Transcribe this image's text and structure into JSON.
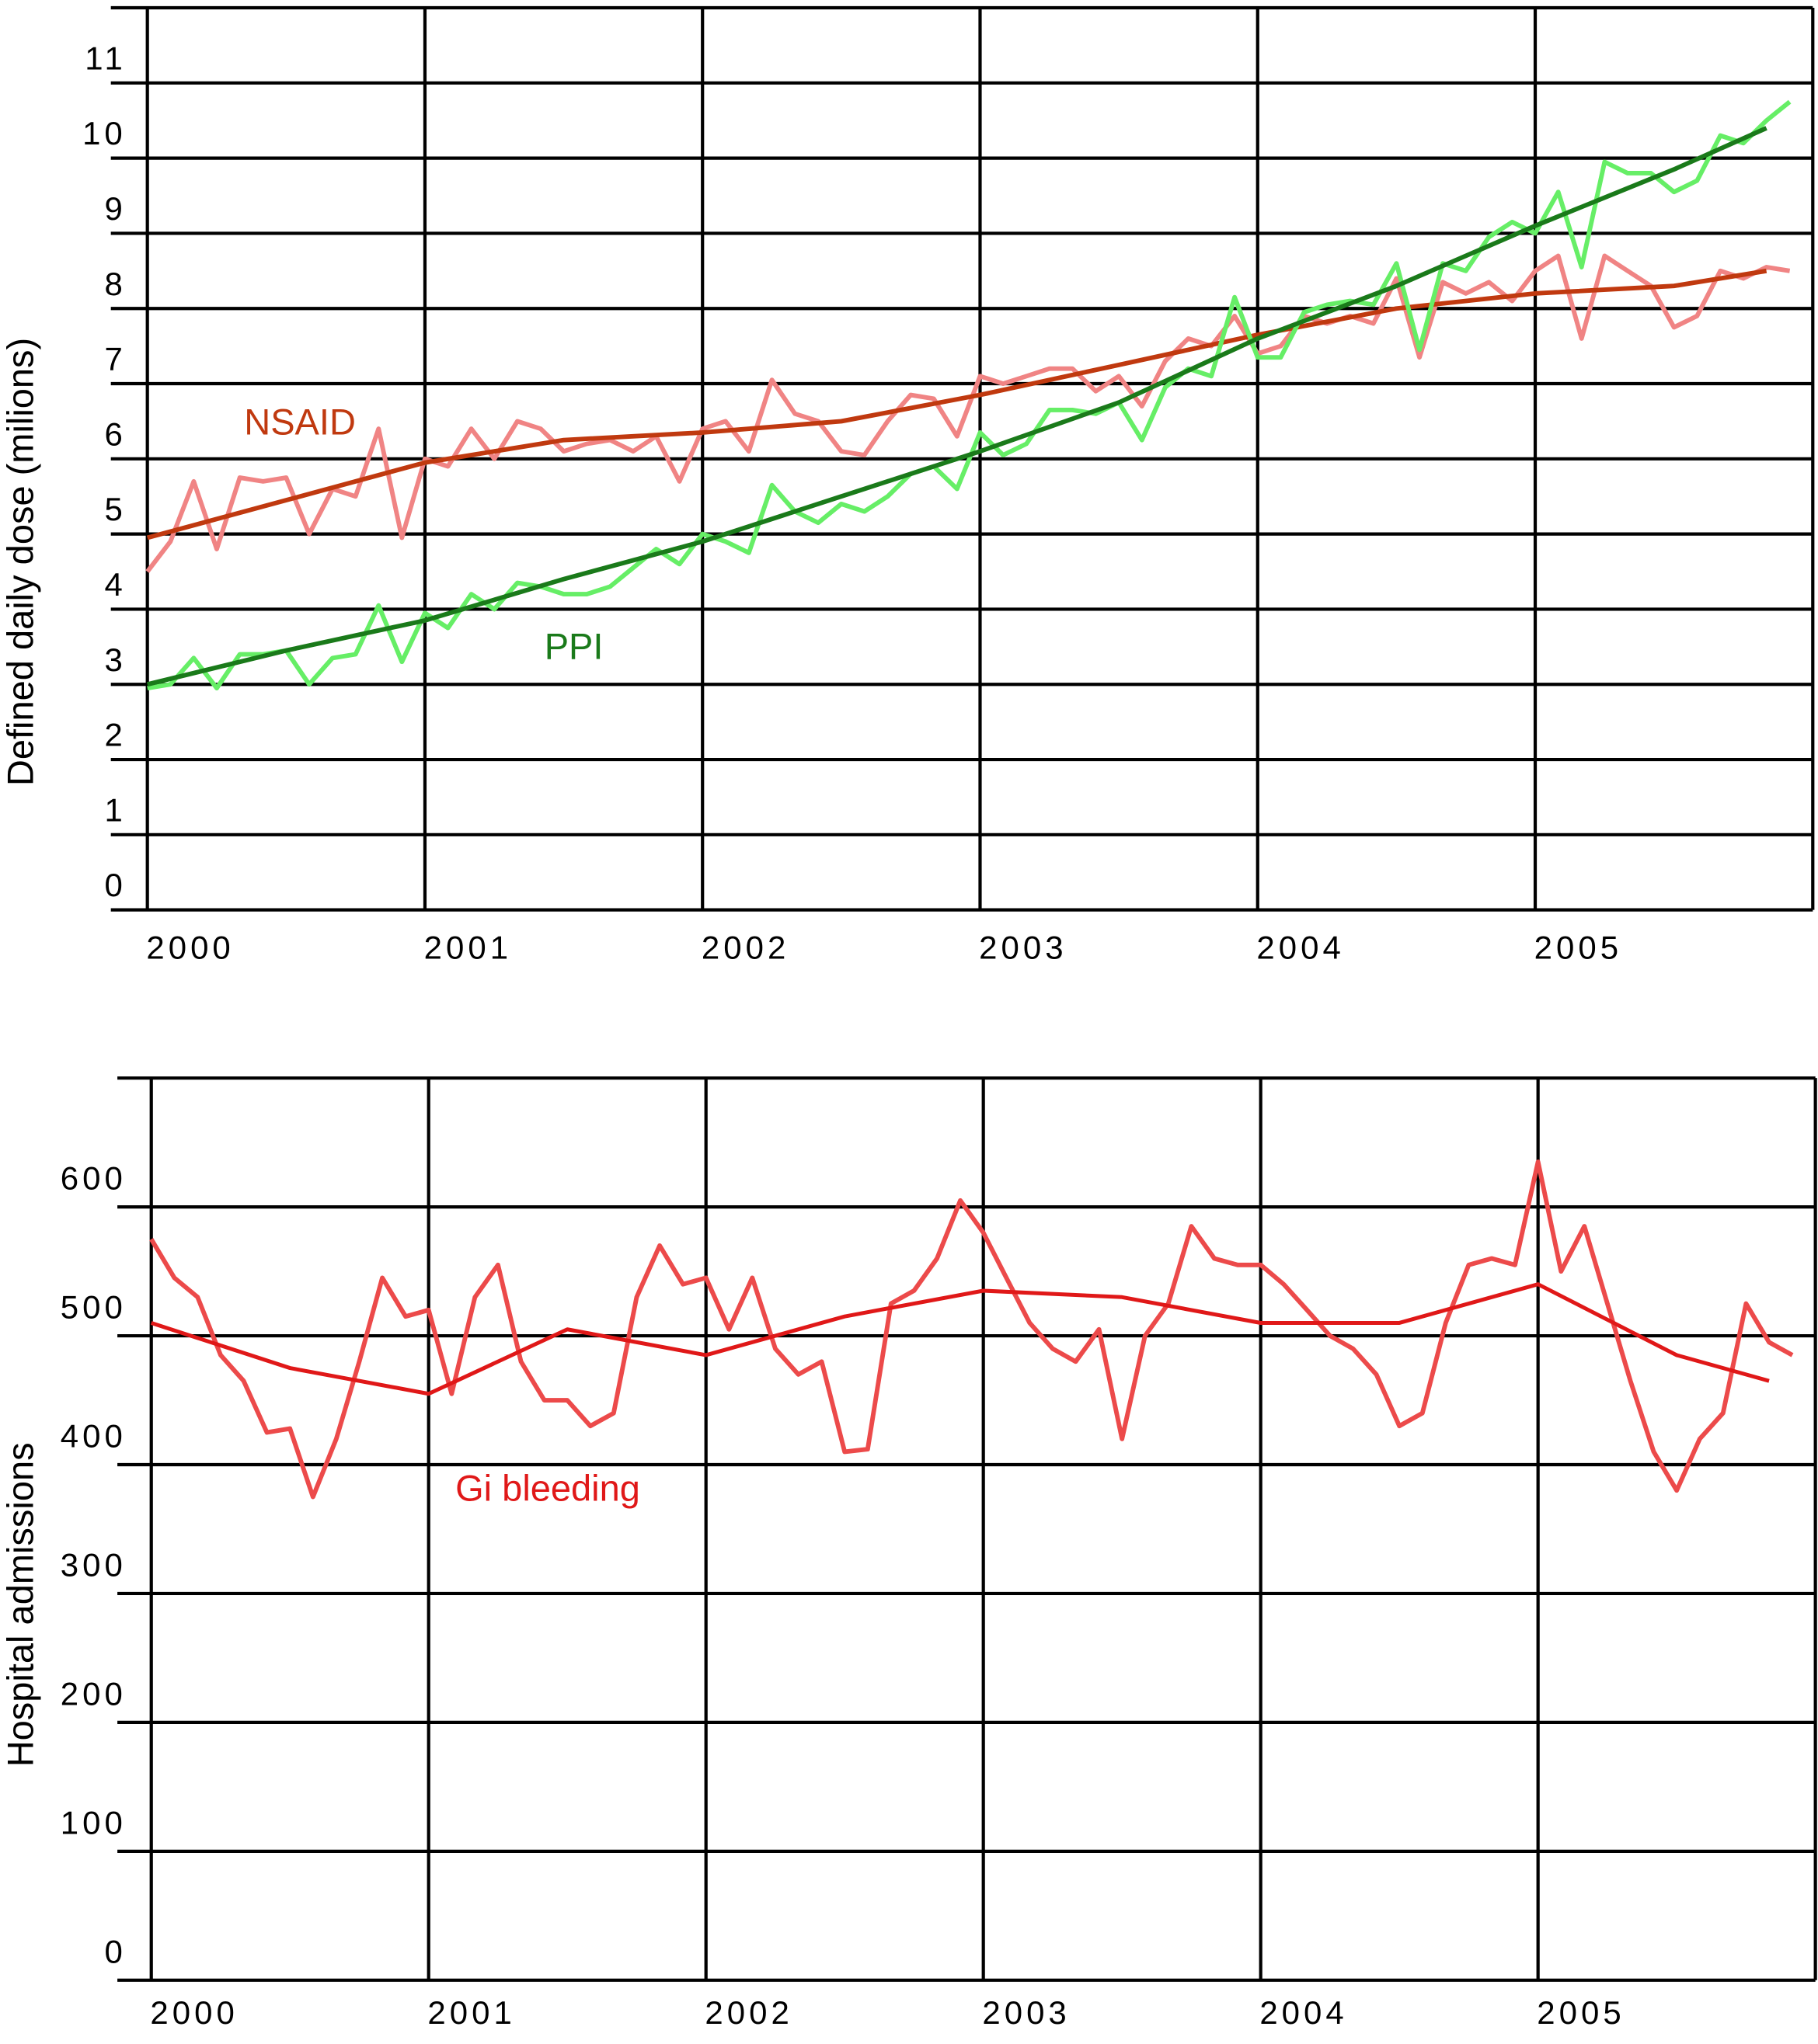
{
  "chart_data": [
    {
      "type": "line",
      "ylabel": "Defined daily dose (milions)",
      "xlim": [
        2000,
        2006
      ],
      "xticks": [
        2000,
        2001,
        2002,
        2003,
        2004,
        2005
      ],
      "ylim": [
        0,
        12
      ],
      "yticks": [
        0,
        1,
        2,
        3,
        4,
        5,
        6,
        7,
        8,
        9,
        10,
        11
      ],
      "grid": true,
      "x": [
        2000,
        2000.083,
        2000.167,
        2000.25,
        2000.333,
        2000.417,
        2000.5,
        2000.583,
        2000.667,
        2000.75,
        2000.833,
        2000.917,
        2001,
        2001.083,
        2001.167,
        2001.25,
        2001.333,
        2001.417,
        2001.5,
        2001.583,
        2001.667,
        2001.75,
        2001.833,
        2001.917,
        2002,
        2002.083,
        2002.167,
        2002.25,
        2002.333,
        2002.417,
        2002.5,
        2002.583,
        2002.667,
        2002.75,
        2002.833,
        2002.917,
        2003,
        2003.083,
        2003.167,
        2003.25,
        2003.333,
        2003.417,
        2003.5,
        2003.583,
        2003.667,
        2003.75,
        2003.833,
        2003.917,
        2004,
        2004.083,
        2004.167,
        2004.25,
        2004.333,
        2004.417,
        2004.5,
        2004.583,
        2004.667,
        2004.75,
        2004.833,
        2004.917,
        2005,
        2005.083,
        2005.167,
        2005.25,
        2005.333,
        2005.417,
        2005.5,
        2005.583,
        2005.667,
        2005.75,
        2005.833,
        2005.917
      ],
      "series": [
        {
          "color": "#f08484",
          "values": [
            4.5,
            4.9,
            5.7,
            4.8,
            5.75,
            5.7,
            5.75,
            5.0,
            5.6,
            5.5,
            6.4,
            4.95,
            6.0,
            5.9,
            6.4,
            6.0,
            6.5,
            6.4,
            6.1,
            6.2,
            6.25,
            6.1,
            6.3,
            5.7,
            6.4,
            6.5,
            6.1,
            7.05,
            6.6,
            6.5,
            6.1,
            6.05,
            6.5,
            6.85,
            6.8,
            6.3,
            7.1,
            7.0,
            7.1,
            7.2,
            7.2,
            6.9,
            7.1,
            6.7,
            7.3,
            7.6,
            7.5,
            7.9,
            7.4,
            7.5,
            7.9,
            7.8,
            7.9,
            7.8,
            8.4,
            7.35,
            8.35,
            8.2,
            8.35,
            8.1,
            8.5,
            8.7,
            7.6,
            8.7,
            8.5,
            8.3,
            7.75,
            7.9,
            8.5,
            8.4,
            8.55,
            8.5
          ]
        },
        {
          "name": "NSAID",
          "color": "#c0390f",
          "x": [
            2000,
            2000.5,
            2001,
            2001.5,
            2002,
            2002.5,
            2003,
            2003.5,
            2004,
            2004.5,
            2005,
            2005.5,
            2005.833
          ],
          "values": [
            4.95,
            5.45,
            5.95,
            6.25,
            6.35,
            6.5,
            6.85,
            7.25,
            7.65,
            8.0,
            8.2,
            8.3,
            8.5
          ]
        },
        {
          "color": "#66ee66",
          "values": [
            2.95,
            3.0,
            3.35,
            2.95,
            3.4,
            3.4,
            3.45,
            3.0,
            3.35,
            3.4,
            4.05,
            3.3,
            3.95,
            3.75,
            4.2,
            4.0,
            4.35,
            4.3,
            4.2,
            4.2,
            4.3,
            4.55,
            4.8,
            4.6,
            5.0,
            4.9,
            4.75,
            5.65,
            5.3,
            5.15,
            5.4,
            5.3,
            5.5,
            5.8,
            5.9,
            5.6,
            6.35,
            6.05,
            6.2,
            6.65,
            6.65,
            6.6,
            6.75,
            6.25,
            6.95,
            7.2,
            7.1,
            8.15,
            7.35,
            7.35,
            7.95,
            8.05,
            8.1,
            8.05,
            8.6,
            7.45,
            8.6,
            8.5,
            8.95,
            9.15,
            9.0,
            9.55,
            8.55,
            9.95,
            9.8,
            9.8,
            9.55,
            9.7,
            10.3,
            10.2,
            10.5,
            10.75
          ]
        },
        {
          "name": "PPI",
          "color": "#1a7a1a",
          "x": [
            2000,
            2000.5,
            2001,
            2001.5,
            2002,
            2002.5,
            2003,
            2003.5,
            2004,
            2004.5,
            2005,
            2005.5,
            2005.833
          ],
          "values": [
            3.0,
            3.45,
            3.85,
            4.4,
            4.9,
            5.5,
            6.1,
            6.75,
            7.6,
            8.3,
            9.1,
            9.85,
            10.4
          ]
        }
      ]
    },
    {
      "type": "line",
      "ylabel": "Hospital admissions",
      "xlim": [
        2000,
        2006
      ],
      "xticks": [
        2000,
        2001,
        2002,
        2003,
        2004,
        2005
      ],
      "ylim": [
        0,
        700
      ],
      "yticks": [
        0,
        100,
        200,
        300,
        400,
        500,
        600
      ],
      "grid": true,
      "x": [
        2000,
        2000.083,
        2000.167,
        2000.25,
        2000.333,
        2000.417,
        2000.5,
        2000.583,
        2000.667,
        2000.75,
        2000.833,
        2000.917,
        2001,
        2001.083,
        2001.167,
        2001.25,
        2001.333,
        2001.417,
        2001.5,
        2001.583,
        2001.667,
        2001.75,
        2001.833,
        2001.917,
        2002,
        2002.083,
        2002.167,
        2002.25,
        2002.333,
        2002.417,
        2002.5,
        2002.583,
        2002.667,
        2002.75,
        2002.833,
        2002.917,
        2003,
        2003.083,
        2003.167,
        2003.25,
        2003.333,
        2003.417,
        2003.5,
        2003.583,
        2003.667,
        2003.75,
        2003.833,
        2003.917,
        2004,
        2004.083,
        2004.167,
        2004.25,
        2004.333,
        2004.417,
        2004.5,
        2004.583,
        2004.667,
        2004.75,
        2004.833,
        2004.917,
        2005,
        2005.083,
        2005.167,
        2005.25,
        2005.333,
        2005.417,
        2005.5,
        2005.583,
        2005.667,
        2005.75,
        2005.833,
        2005.917
      ],
      "series": [
        {
          "color": "#ec4a4a",
          "values": [
            575,
            545,
            530,
            485,
            465,
            425,
            428,
            375,
            420,
            480,
            545,
            515,
            520,
            455,
            530,
            555,
            480,
            450,
            450,
            430,
            440,
            530,
            570,
            540,
            545,
            505,
            545,
            490,
            470,
            480,
            410,
            412,
            525,
            535,
            560,
            605,
            580,
            545,
            510,
            490,
            480,
            505,
            420,
            500,
            525,
            585,
            560,
            555,
            555,
            540,
            520,
            500,
            490,
            470,
            430,
            440,
            510,
            555,
            560,
            555,
            635,
            550,
            585,
            525,
            465,
            410,
            380,
            420,
            440,
            525,
            495,
            485
          ]
        },
        {
          "name": "Gi bleeding",
          "color": "#e01818",
          "x": [
            2000,
            2000.5,
            2001,
            2001.5,
            2002,
            2002.5,
            2003,
            2003.5,
            2004,
            2004.5,
            2005,
            2005.5,
            2005.833
          ],
          "values": [
            510,
            475,
            455,
            505,
            485,
            515,
            535,
            530,
            510,
            510,
            540,
            485,
            465
          ]
        }
      ]
    }
  ]
}
